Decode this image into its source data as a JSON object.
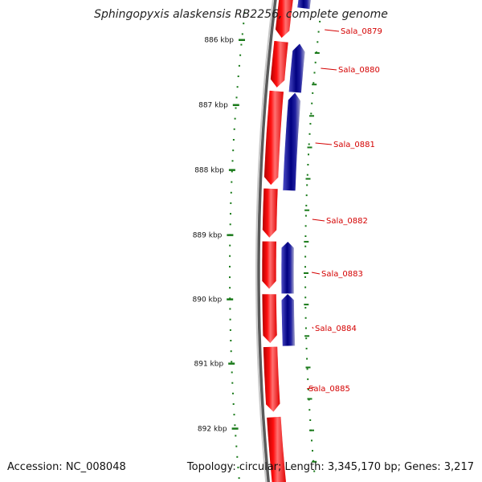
{
  "title": "Sphingopyxis alaskensis RB2256, complete genome",
  "accession_text": "Accession: NC_008048",
  "summary_text": "Topology: circular; Length: 3,345,170 bp; Genes: 3,217",
  "colors": {
    "forward_gene": "#ff0000",
    "reverse_gene": "#0000cc",
    "reverse_gene_dark": "#000080",
    "backbone": "#777777",
    "tick": "#1a7a1a",
    "label": "#d40000"
  },
  "scale_ticks": [
    "886 kbp",
    "887 kbp",
    "888 kbp",
    "889 kbp",
    "890 kbp",
    "891 kbp",
    "892 kbp"
  ],
  "gene_labels": [
    "Sala_0879",
    "Sala_0880",
    "Sala_0881",
    "Sala_0882",
    "Sala_0883",
    "Sala_0884",
    "Sala_0885"
  ]
}
